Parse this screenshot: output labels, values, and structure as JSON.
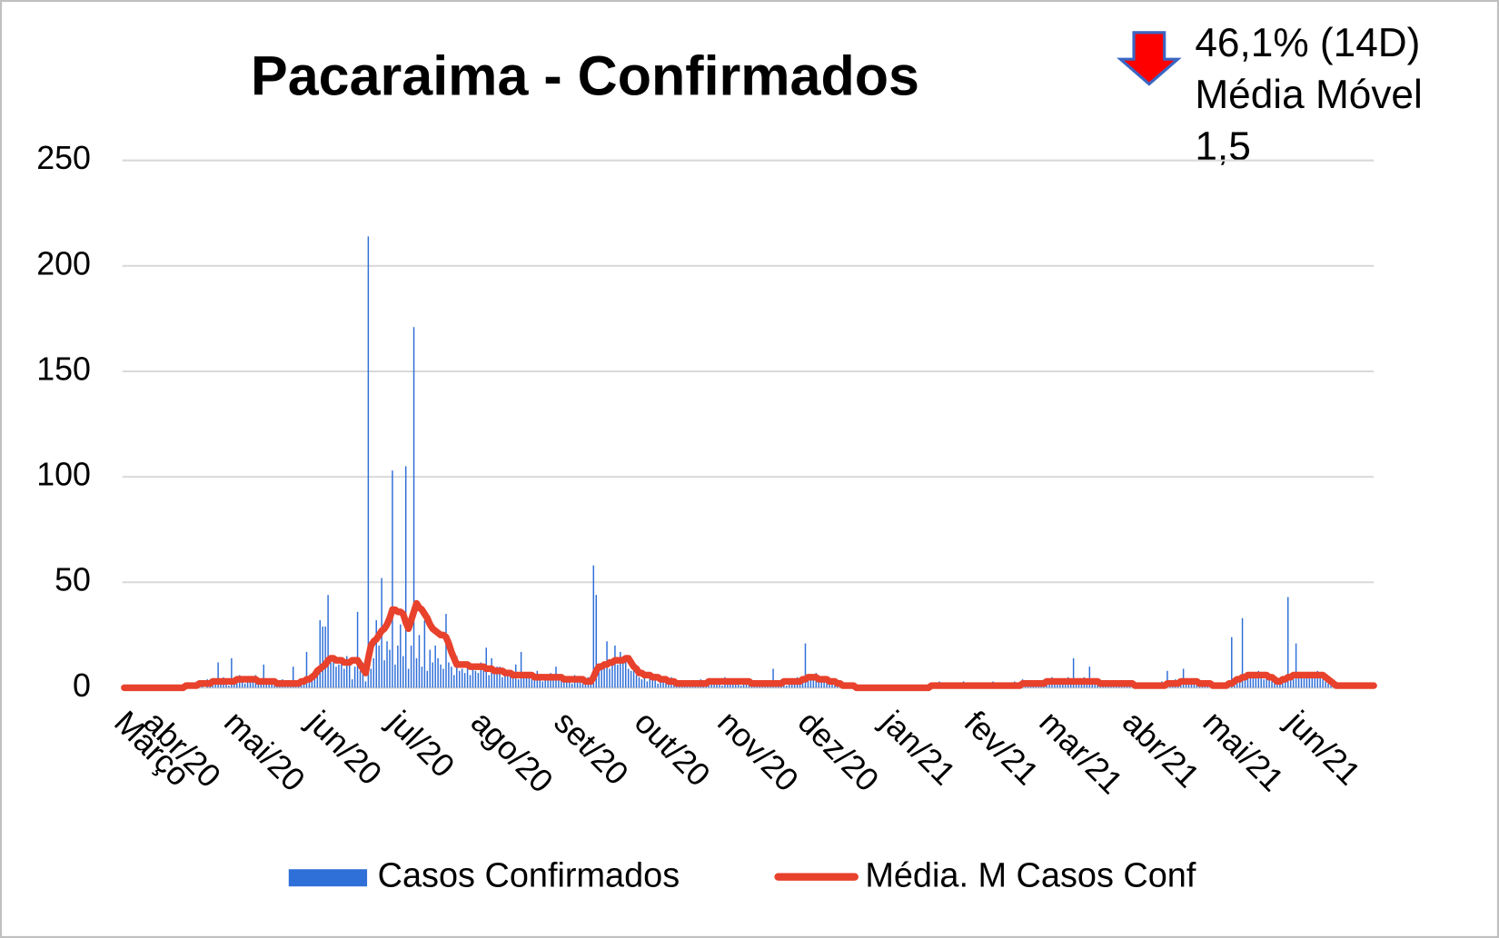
{
  "chart_data": {
    "type": "bar",
    "title": "Pacaraima - Confirmados",
    "annotation": [
      "46,1% (14D)",
      "Média Móvel",
      "1,5"
    ],
    "ylim": [
      0,
      250
    ],
    "yticks": [
      0,
      50,
      100,
      150,
      200,
      250
    ],
    "grid": true,
    "legend": "bottom",
    "categories": [
      "Março",
      null,
      null,
      null,
      null,
      null,
      null,
      null,
      null,
      null,
      null,
      "abr/20",
      null,
      null,
      null,
      null,
      null,
      null,
      null,
      null,
      null,
      null,
      null,
      null,
      null,
      null,
      null,
      null,
      null,
      null,
      null,
      null,
      null,
      null,
      null,
      null,
      null,
      null,
      null,
      null,
      null,
      "mai/20",
      null,
      null,
      null,
      null,
      null,
      null,
      null,
      null,
      null,
      null,
      null,
      null,
      null,
      null,
      null,
      null,
      null,
      null,
      null,
      null,
      null,
      null,
      null,
      null,
      null,
      null,
      null,
      null,
      null,
      null,
      "jun/20",
      null,
      null,
      null,
      null,
      null,
      null,
      null,
      null,
      null,
      null,
      null,
      null,
      null,
      null,
      null,
      null,
      null,
      null,
      null,
      null,
      null,
      null,
      null,
      null,
      null,
      null,
      null,
      null,
      null,
      "jul/20",
      null,
      null,
      null,
      null,
      null,
      null,
      null,
      null,
      null,
      null,
      null,
      null,
      null,
      null,
      null,
      null,
      null,
      null,
      null,
      null,
      null,
      null,
      null,
      null,
      null,
      null,
      null,
      null,
      null,
      null,
      "ago/20",
      null,
      null,
      null,
      null,
      null,
      null,
      null,
      null,
      null,
      null,
      null,
      null,
      null,
      null,
      null,
      null,
      null,
      null,
      null,
      null,
      null,
      null,
      null,
      null,
      null,
      null,
      null,
      null,
      null,
      null,
      "set/20",
      null,
      null,
      null,
      null,
      null,
      null,
      null,
      null,
      null,
      null,
      null,
      null,
      null,
      null,
      null,
      null,
      null,
      null,
      null,
      null,
      null,
      null,
      null,
      null,
      null,
      null,
      null,
      null,
      null,
      "out/20",
      null,
      null,
      null,
      null,
      null,
      null,
      null,
      null,
      null,
      null,
      null,
      null,
      null,
      null,
      null,
      null,
      null,
      null,
      null,
      null,
      null,
      null,
      null,
      null,
      null,
      null,
      null,
      null,
      null,
      null,
      "nov/20",
      null,
      null,
      null,
      null,
      null,
      null,
      null,
      null,
      null,
      null,
      null,
      null,
      null,
      null,
      null,
      null,
      null,
      null,
      null,
      null,
      null,
      null,
      null,
      null,
      null,
      null,
      null,
      null,
      null,
      "dez/20",
      null,
      null,
      null,
      null,
      null,
      null,
      null,
      null,
      null,
      null,
      null,
      null,
      null,
      null,
      null,
      null,
      null,
      null,
      null,
      null,
      null,
      null,
      null,
      null,
      null,
      null,
      null,
      null,
      null,
      null,
      "jan/21",
      null,
      null,
      null,
      null,
      null,
      null,
      null,
      null,
      null,
      null,
      null,
      null,
      null,
      null,
      null,
      null,
      null,
      null,
      null,
      null,
      null,
      null,
      null,
      null,
      null,
      null,
      null,
      null,
      null,
      null,
      "fev/21",
      null,
      null,
      null,
      null,
      null,
      null,
      null,
      null,
      null,
      null,
      null,
      null,
      null,
      null,
      null,
      null,
      null,
      null,
      null,
      null,
      null,
      null,
      null,
      null,
      null,
      null,
      null,
      "mar/21",
      null,
      null,
      null,
      null,
      null,
      null,
      null,
      null,
      null,
      null,
      null,
      null,
      null,
      null,
      null,
      null,
      null,
      null,
      null,
      null,
      null,
      null,
      null,
      null,
      null,
      null,
      null,
      null,
      null,
      null,
      "abr/21",
      null,
      null,
      null,
      null,
      null,
      null,
      null,
      null,
      null,
      null,
      null,
      null,
      null,
      null,
      null,
      null,
      null,
      null,
      null,
      null,
      null,
      null,
      null,
      null,
      null,
      null,
      null,
      null,
      null,
      "mai/21",
      null,
      null,
      null,
      null,
      null,
      null,
      null,
      null,
      null,
      null,
      null,
      null,
      null,
      null,
      null,
      null,
      null,
      null,
      null,
      null,
      null,
      null,
      null,
      null,
      null,
      null,
      null,
      null,
      null,
      null,
      "jun/21",
      null,
      null,
      null,
      null,
      null,
      null,
      null,
      null,
      null,
      null,
      null,
      null,
      null,
      null,
      null,
      null,
      null,
      null,
      null,
      null,
      null,
      null,
      null,
      null,
      null,
      null,
      null,
      null,
      null
    ],
    "series": [
      {
        "name": "Casos Confirmados",
        "type": "bar",
        "color": "#2f6fd8",
        "values": [
          0,
          0,
          0,
          0,
          0,
          0,
          0,
          0,
          0,
          0,
          0,
          0,
          0,
          1,
          0,
          0,
          0,
          0,
          1,
          0,
          0,
          1,
          0,
          2,
          0,
          1,
          0,
          3,
          1,
          2,
          0,
          4,
          2,
          1,
          3,
          12,
          2,
          5,
          3,
          1,
          14,
          2,
          4,
          6,
          3,
          2,
          5,
          4,
          3,
          6,
          2,
          3,
          11,
          4,
          2,
          3,
          1,
          3,
          2,
          4,
          1,
          2,
          3,
          10,
          2,
          1,
          4,
          3,
          17,
          5,
          7,
          4,
          9,
          32,
          29,
          29,
          44,
          12,
          14,
          10,
          11,
          13,
          9,
          15,
          12,
          4,
          10,
          36,
          8,
          12,
          3,
          214,
          9,
          14,
          32,
          20,
          52,
          13,
          22,
          18,
          103,
          11,
          20,
          30,
          15,
          105,
          9,
          20,
          171,
          14,
          25,
          10,
          32,
          8,
          18,
          12,
          20,
          14,
          11,
          9,
          35,
          12,
          10,
          6,
          15,
          8,
          9,
          7,
          11,
          6,
          10,
          8,
          7,
          12,
          9,
          19,
          6,
          14,
          8,
          10,
          10,
          5,
          9,
          7,
          6,
          8,
          11,
          4,
          17,
          6,
          5,
          7,
          4,
          6,
          8,
          5,
          3,
          6,
          4,
          7,
          5,
          10,
          4,
          6,
          3,
          5,
          4,
          2,
          6,
          3,
          4,
          2,
          3,
          5,
          2,
          58,
          44,
          8,
          10,
          12,
          22,
          9,
          13,
          20,
          11,
          17,
          12,
          14,
          9,
          8,
          10,
          6,
          5,
          4,
          7,
          3,
          5,
          4,
          6,
          2,
          3,
          5,
          4,
          2,
          5,
          3,
          1,
          2,
          3,
          2,
          1,
          3,
          2,
          2,
          1,
          4,
          2,
          3,
          1,
          2,
          4,
          3,
          2,
          1,
          5,
          3,
          2,
          4,
          3,
          2,
          1,
          3,
          4,
          2,
          3,
          2,
          1,
          2,
          3,
          1,
          2,
          3,
          9,
          1,
          2,
          3,
          2,
          1,
          4,
          3,
          2,
          5,
          3,
          4,
          21,
          6,
          5,
          4,
          7,
          3,
          5,
          4,
          3,
          2,
          4,
          1,
          2,
          3,
          1,
          0,
          1,
          0,
          2,
          0,
          0,
          1,
          0,
          0,
          0,
          0,
          0,
          0,
          1,
          0,
          0,
          0,
          0,
          1,
          0,
          0,
          0,
          0,
          0,
          1,
          0,
          0,
          0,
          0,
          1,
          0,
          0,
          2,
          1,
          0,
          3,
          1,
          0,
          2,
          1,
          1,
          2,
          0,
          1,
          3,
          1,
          0,
          2,
          1,
          0,
          1,
          1,
          2,
          0,
          1,
          3,
          0,
          1,
          2,
          1,
          0,
          2,
          1,
          3,
          2,
          1,
          4,
          2,
          1,
          3,
          2,
          3,
          2,
          1,
          4,
          3,
          2,
          5,
          3,
          2,
          4,
          3,
          2,
          5,
          3,
          14,
          2,
          4,
          3,
          5,
          2,
          10,
          3,
          2,
          4,
          3,
          1,
          2,
          3,
          2,
          1,
          2,
          1,
          3,
          2,
          1,
          2,
          0,
          1,
          2,
          1,
          0,
          1,
          2,
          0,
          1,
          2,
          1,
          3,
          2,
          8,
          3,
          2,
          4,
          3,
          2,
          9,
          3,
          4,
          2,
          3,
          2,
          3,
          1,
          2,
          1,
          0,
          2,
          1,
          0,
          1,
          1,
          0,
          2,
          24,
          3,
          5,
          4,
          33,
          6,
          5,
          7,
          6,
          5,
          8,
          6,
          4,
          7,
          5,
          3,
          4,
          2,
          3,
          5,
          3,
          43,
          6,
          4,
          21,
          7,
          5,
          6,
          5,
          7,
          6,
          5,
          8,
          6,
          4,
          3,
          2,
          1,
          2,
          0,
          1,
          2,
          1,
          0,
          2,
          1,
          0,
          1,
          2,
          1,
          0,
          1,
          2,
          1
        ]
      },
      {
        "name": "Média. M Casos Conf",
        "type": "line",
        "color": "#e8412c",
        "values": [
          0,
          0,
          0,
          0,
          0,
          0,
          0,
          0,
          0,
          0,
          0,
          0,
          0,
          0,
          0,
          0,
          0,
          0,
          0,
          0,
          0,
          0,
          0,
          1,
          1,
          1,
          1,
          1,
          2,
          2,
          2,
          2,
          2,
          3,
          3,
          3,
          3,
          3,
          3,
          3,
          3,
          3,
          4,
          4,
          4,
          4,
          4,
          4,
          4,
          4,
          3,
          3,
          3,
          3,
          3,
          3,
          3,
          2,
          2,
          2,
          2,
          2,
          2,
          2,
          2,
          2,
          3,
          3,
          4,
          4,
          5,
          6,
          8,
          9,
          10,
          11,
          13,
          14,
          14,
          13,
          13,
          13,
          12,
          12,
          12,
          13,
          13,
          13,
          11,
          9,
          7,
          14,
          20,
          22,
          23,
          25,
          27,
          28,
          30,
          33,
          37,
          37,
          36,
          36,
          35,
          31,
          28,
          32,
          36,
          40,
          38,
          37,
          35,
          33,
          30,
          28,
          27,
          26,
          25,
          25,
          24,
          21,
          17,
          14,
          11,
          11,
          11,
          11,
          11,
          10,
          10,
          10,
          10,
          10,
          10,
          9,
          9,
          9,
          8,
          8,
          8,
          8,
          7,
          7,
          7,
          6,
          6,
          6,
          6,
          6,
          6,
          6,
          6,
          5,
          5,
          5,
          5,
          5,
          5,
          5,
          5,
          5,
          5,
          5,
          4,
          4,
          4,
          4,
          4,
          4,
          4,
          4,
          3,
          3,
          3,
          5,
          8,
          10,
          10,
          11,
          11,
          12,
          12,
          13,
          13,
          13,
          13,
          14,
          14,
          12,
          10,
          9,
          7,
          7,
          6,
          6,
          6,
          5,
          5,
          5,
          4,
          4,
          4,
          3,
          3,
          3,
          2,
          2,
          2,
          2,
          2,
          2,
          2,
          2,
          2,
          2,
          2,
          2,
          3,
          3,
          3,
          3,
          3,
          3,
          3,
          3,
          3,
          3,
          3,
          3,
          3,
          3,
          3,
          3,
          2,
          2,
          2,
          2,
          2,
          2,
          2,
          2,
          2,
          2,
          2,
          2,
          3,
          3,
          3,
          3,
          3,
          3,
          3,
          4,
          4,
          5,
          5,
          5,
          5,
          4,
          4,
          4,
          4,
          3,
          3,
          3,
          2,
          2,
          1,
          1,
          1,
          1,
          1,
          0,
          0,
          0,
          0,
          0,
          0,
          0,
          0,
          0,
          0,
          0,
          0,
          0,
          0,
          0,
          0,
          0,
          0,
          0,
          0,
          0,
          0,
          0,
          0,
          0,
          0,
          0,
          0,
          1,
          1,
          1,
          1,
          1,
          1,
          1,
          1,
          1,
          1,
          1,
          1,
          1,
          1,
          1,
          1,
          1,
          1,
          1,
          1,
          1,
          1,
          1,
          1,
          1,
          1,
          1,
          1,
          1,
          1,
          1,
          1,
          1,
          1,
          2,
          2,
          2,
          2,
          2,
          2,
          2,
          2,
          2,
          3,
          3,
          3,
          3,
          3,
          3,
          3,
          3,
          3,
          3,
          3,
          3,
          3,
          3,
          3,
          3,
          3,
          3,
          3,
          3,
          2,
          2,
          2,
          2,
          2,
          2,
          2,
          2,
          2,
          2,
          2,
          2,
          2,
          1,
          1,
          1,
          1,
          1,
          1,
          1,
          1,
          1,
          1,
          1,
          1,
          2,
          2,
          2,
          2,
          2,
          3,
          3,
          3,
          3,
          3,
          3,
          3,
          2,
          2,
          2,
          2,
          2,
          1,
          1,
          1,
          1,
          1,
          1,
          2,
          2,
          3,
          4,
          4,
          5,
          5,
          6,
          6,
          6,
          6,
          6,
          6,
          6,
          6,
          5,
          5,
          4,
          3,
          3,
          4,
          4,
          5,
          5,
          6,
          6,
          6,
          6,
          6,
          6,
          6,
          6,
          6,
          6,
          6,
          6,
          5,
          4,
          3,
          2,
          1,
          1,
          1,
          1,
          1,
          1,
          1,
          1,
          1,
          1,
          1,
          1,
          1,
          1,
          1
        ]
      }
    ]
  }
}
